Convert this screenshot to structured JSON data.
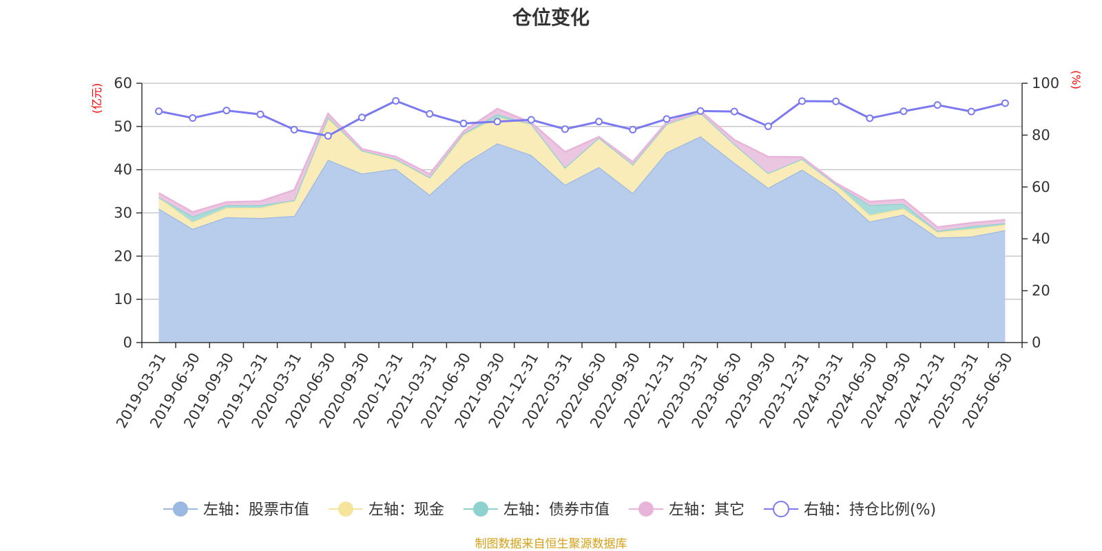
{
  "chart_data": {
    "type": "area",
    "title": "仓位变化",
    "left_unit": "(亿元)",
    "right_unit": "(%)",
    "source_note": "制图数据来自恒生聚源数据库",
    "categories": [
      "2019-03-31",
      "2019-06-30",
      "2019-09-30",
      "2019-12-31",
      "2020-03-31",
      "2020-06-30",
      "2020-09-30",
      "2020-12-31",
      "2021-03-31",
      "2021-06-30",
      "2021-09-30",
      "2021-12-31",
      "2022-03-31",
      "2022-06-30",
      "2022-09-30",
      "2022-12-31",
      "2023-03-31",
      "2023-06-30",
      "2023-09-30",
      "2023-12-31",
      "2024-03-31",
      "2024-06-30",
      "2024-09-30",
      "2024-12-31",
      "2025-03-31",
      "2025-06-30"
    ],
    "left_axis": {
      "min": 0,
      "max": 60,
      "ticks": [
        0,
        10,
        20,
        30,
        40,
        50,
        60
      ]
    },
    "right_axis": {
      "min": 0,
      "max": 100,
      "ticks": [
        0,
        20,
        40,
        60,
        80,
        100
      ]
    },
    "grid": true,
    "legend_position": "bottom",
    "series": [
      {
        "name": "左轴：股票市值",
        "axis": "left",
        "kind": "stacked-area",
        "color": "#9bb8e3",
        "fill": "#b8cdeb",
        "values": [
          31.0,
          26.3,
          29.0,
          28.8,
          29.3,
          42.3,
          39.1,
          40.2,
          34.2,
          41.3,
          46.1,
          43.4,
          36.5,
          40.6,
          34.6,
          44.0,
          47.7,
          41.6,
          35.8,
          40.0,
          35.0,
          28.0,
          29.6,
          24.3,
          24.5,
          26.0
        ]
      },
      {
        "name": "左轴：现金",
        "axis": "left",
        "kind": "stacked-area",
        "color": "#f5e49b",
        "fill": "#faecb8",
        "values": [
          2.6,
          1.6,
          2.2,
          2.4,
          3.6,
          9.5,
          5.3,
          2.0,
          4.0,
          6.8,
          6.0,
          7.2,
          4.0,
          6.8,
          6.6,
          6.6,
          5.5,
          4.3,
          3.4,
          2.5,
          1.6,
          1.5,
          1.4,
          1.3,
          1.8,
          1.3
        ]
      },
      {
        "name": "左轴：债券市值",
        "axis": "left",
        "kind": "stacked-area",
        "color": "#8fd1cf",
        "fill": "#a9dcd9",
        "values": [
          0.0,
          1.3,
          0.6,
          0.6,
          0.0,
          0.4,
          0.0,
          0.3,
          0.0,
          0.3,
          0.7,
          0.0,
          0.0,
          0.0,
          0.0,
          0.0,
          0.0,
          0.0,
          0.0,
          0.0,
          0.0,
          2.3,
          1.1,
          0.2,
          0.6,
          0.3
        ]
      },
      {
        "name": "左轴：其它",
        "axis": "left",
        "kind": "stacked-area",
        "color": "#e8b4da",
        "fill": "#ebc6e1",
        "values": [
          1.0,
          1.0,
          0.7,
          0.9,
          2.4,
          0.8,
          0.4,
          0.5,
          0.8,
          0.5,
          1.3,
          0.3,
          3.6,
          0.2,
          0.6,
          0.4,
          0.4,
          1.0,
          3.8,
          0.4,
          0.3,
          0.8,
          1.0,
          0.9,
          0.8,
          0.8
        ]
      },
      {
        "name": "右轴：持仓比例(%)",
        "axis": "right",
        "kind": "line",
        "color": "#7b79f0",
        "values": [
          89.2,
          86.6,
          89.5,
          88.0,
          82.1,
          79.7,
          86.8,
          93.2,
          88.2,
          84.5,
          85.2,
          85.9,
          82.3,
          85.2,
          82.1,
          86.2,
          89.3,
          89.1,
          83.4,
          93.1,
          93.0,
          86.5,
          89.2,
          91.6,
          89.1,
          92.3
        ]
      }
    ]
  }
}
